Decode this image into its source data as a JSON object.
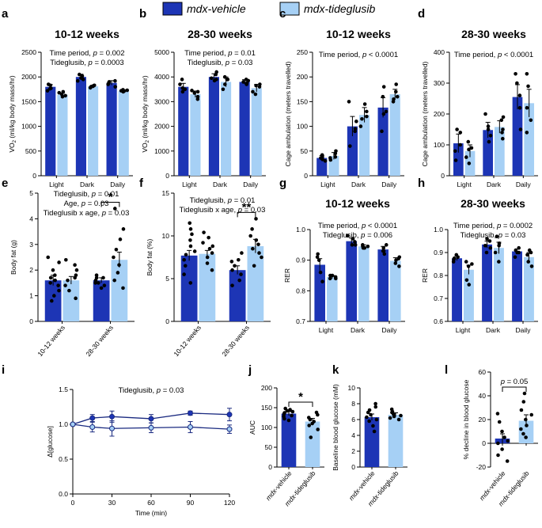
{
  "legend": {
    "items": [
      {
        "name": "mdx-vehicle",
        "color": "#1d35b5"
      },
      {
        "name": "mdx-tideglusib",
        "color": "#a6d0f5"
      }
    ]
  },
  "colors": {
    "vehicle": "#1d35b5",
    "tideglusib": "#a6d0f5",
    "axis": "#000000"
  },
  "chart_data": [
    {
      "letter": "a",
      "type": "bar",
      "title": "10-12 weeks",
      "stats": [
        "Time period, p = 0.002",
        "Tideglusib, p = 0.0003"
      ],
      "ylabel": "VO2 (ml/kg body mass/hr)",
      "ylim": [
        0,
        2500
      ],
      "yticks": [
        0,
        500,
        1000,
        1500,
        2000,
        2500
      ],
      "categories": [
        "Light",
        "Dark",
        "Daily"
      ],
      "rotate": false,
      "series": [
        {
          "name": "mdx-vehicle",
          "values": [
            1800,
            2000,
            1880
          ],
          "err": [
            45,
            55,
            45
          ],
          "points": [
            [
              1830,
              1770,
              1720,
              1850,
              1760
            ],
            [
              2050,
              1950,
              2020,
              1920,
              1980
            ],
            [
              1900,
              1850,
              1920,
              1800,
              1870
            ]
          ]
        },
        {
          "name": "mdx-tideglusib",
          "values": [
            1640,
            1810,
            1720
          ],
          "err": [
            30,
            25,
            20
          ],
          "points": [
            [
              1600,
              1680,
              1620,
              1700,
              1650
            ],
            [
              1800,
              1830,
              1780,
              1820,
              1810
            ],
            [
              1700,
              1730,
              1720,
              1740,
              1710
            ]
          ]
        }
      ]
    },
    {
      "letter": "b",
      "type": "bar",
      "title": "28-30 weeks",
      "stats": [
        "Time period, p = 0.01",
        "Tideglusib, p = 0.03"
      ],
      "ylabel": "VO2 (ml/kg body mass/hr)",
      "ylim": [
        0,
        5000
      ],
      "yticks": [
        0,
        1000,
        2000,
        3000,
        4000,
        5000
      ],
      "categories": [
        "Light",
        "Dark",
        "Daily"
      ],
      "rotate": false,
      "series": [
        {
          "name": "mdx-vehicle",
          "values": [
            3600,
            4000,
            3800
          ],
          "err": [
            140,
            130,
            90
          ],
          "points": [
            [
              3500,
              3700,
              3900,
              3400,
              3550
            ],
            [
              4100,
              3900,
              4200,
              3850,
              3950
            ],
            [
              3700,
              3850,
              3900,
              3750,
              3800
            ]
          ]
        },
        {
          "name": "mdx-tideglusib",
          "values": [
            3300,
            3800,
            3550
          ],
          "err": [
            130,
            200,
            150
          ],
          "points": [
            [
              3100,
              3350,
              3400,
              3200,
              3450
            ],
            [
              3500,
              3900,
              4000,
              3700,
              3900
            ],
            [
              3300,
              3600,
              3700,
              3400,
              3650
            ]
          ]
        }
      ]
    },
    {
      "letter": "c",
      "type": "bar",
      "title": "10-12 weeks",
      "stats": [
        "Time period, p < 0.0001"
      ],
      "ylabel": "Cage ambulation (meters travelled)",
      "ylim": [
        0,
        250
      ],
      "yticks": [
        0,
        50,
        100,
        150,
        200,
        250
      ],
      "categories": [
        "Light",
        "Dark",
        "Daily"
      ],
      "rotate": false,
      "series": [
        {
          "name": "mdx-vehicle",
          "values": [
            36,
            100,
            138
          ],
          "err": [
            5,
            20,
            20
          ],
          "points": [
            [
              30,
              38,
              42,
              33,
              36
            ],
            [
              60,
              90,
              110,
              150,
              95
            ],
            [
              90,
              130,
              160,
              180,
              125
            ]
          ]
        },
        {
          "name": "mdx-tideglusib",
          "values": [
            40,
            123,
            165
          ],
          "err": [
            7,
            15,
            10
          ],
          "points": [
            [
              32,
              45,
              50,
              36,
              38
            ],
            [
              100,
              130,
              145,
              115,
              120
            ],
            [
              150,
              160,
              185,
              170,
              155
            ]
          ]
        }
      ]
    },
    {
      "letter": "d",
      "type": "bar",
      "title": "28-30 weeks",
      "stats": [
        "Time period, p < 0.0001"
      ],
      "ylabel": "Cage ambulation (meters travelled)",
      "ylim": [
        0,
        400
      ],
      "yticks": [
        0,
        100,
        200,
        300,
        400
      ],
      "categories": [
        "Light",
        "Dark",
        "Daily"
      ],
      "rotate": false,
      "series": [
        {
          "name": "mdx-vehicle",
          "values": [
            105,
            148,
            255
          ],
          "err": [
            30,
            25,
            40
          ],
          "points": [
            [
              50,
              80,
              140,
              100,
              150
            ],
            [
              110,
              130,
              200,
              150,
              160
            ],
            [
              150,
              220,
              330,
              300,
              260
            ]
          ]
        },
        {
          "name": "mdx-tideglusib",
          "values": [
            80,
            158,
            235
          ],
          "err": [
            20,
            20,
            45
          ],
          "points": [
            [
              40,
              60,
              90,
              110,
              85
            ],
            [
              120,
              140,
              180,
              190,
              150
            ],
            [
              140,
              180,
              290,
              330,
              220
            ]
          ]
        }
      ]
    },
    {
      "letter": "e",
      "type": "bar",
      "title": "",
      "stats": [
        "Tideglusib, p = 0.01",
        "Age, p = 0.03",
        "Tideglusib x age, p = 0.03"
      ],
      "ylabel": "Body fat (g)",
      "ylim": [
        0,
        5
      ],
      "yticks": [
        0,
        1,
        2,
        3,
        4,
        5
      ],
      "categories": [
        "10-12 weeks",
        "28-30 weeks"
      ],
      "rotate": true,
      "sig": {
        "group": 1,
        "label": "*"
      },
      "series": [
        {
          "name": "mdx-vehicle",
          "values": [
            1.6,
            1.6
          ],
          "err": [
            0.2,
            0.1
          ],
          "points": [
            [
              0.8,
              1.0,
              1.2,
              1.4,
              1.5,
              1.6,
              1.7,
              1.8,
              2.0,
              2.3,
              2.5
            ],
            [
              1.3,
              1.4,
              1.5,
              1.5,
              1.6,
              1.7,
              1.7,
              1.8
            ]
          ]
        },
        {
          "name": "mdx-tideglusib",
          "values": [
            1.6,
            2.4
          ],
          "err": [
            0.15,
            0.3
          ],
          "points": [
            [
              0.9,
              1.2,
              1.4,
              1.6,
              1.7,
              1.8,
              2.0,
              2.2,
              2.4
            ],
            [
              1.3,
              1.6,
              1.9,
              2.2,
              2.5,
              2.8,
              3.2,
              3.6,
              4.4
            ]
          ]
        }
      ]
    },
    {
      "letter": "f",
      "type": "bar",
      "title": "",
      "stats": [
        "Tideglusib, p = 0.01",
        "Tideglusib x age, p = 0.03"
      ],
      "ylabel": "Body fat (%)",
      "ylim": [
        0,
        15
      ],
      "yticks": [
        0,
        5,
        10,
        15
      ],
      "categories": [
        "10-12 weeks",
        "28-30 weeks"
      ],
      "rotate": true,
      "sig": {
        "group": 1,
        "label": "**"
      },
      "series": [
        {
          "name": "mdx-vehicle",
          "values": [
            7.7,
            6.0
          ],
          "err": [
            0.6,
            0.5
          ],
          "points": [
            [
              4.5,
              5.5,
              6.5,
              7.2,
              7.8,
              8.2,
              8.8,
              9.5,
              10.2,
              10.8,
              11.5
            ],
            [
              4.2,
              4.8,
              5.5,
              6.0,
              6.5,
              7.0,
              7.2,
              8.0
            ]
          ]
        },
        {
          "name": "mdx-tideglusib",
          "values": [
            7.9,
            8.8
          ],
          "err": [
            0.4,
            0.8
          ],
          "points": [
            [
              6.0,
              6.8,
              7.5,
              8.0,
              8.5,
              8.8,
              9.2,
              9.8,
              10.4
            ],
            [
              6.5,
              7.5,
              8.0,
              8.5,
              9.0,
              9.5,
              10.0,
              10.8,
              12.0
            ]
          ]
        }
      ]
    },
    {
      "letter": "g",
      "type": "bar",
      "title": "10-12 weeks",
      "stats": [
        "Time period, p < 0.0001",
        "Tideglusib, p = 0.006"
      ],
      "ylabel": "RER",
      "ylim": [
        0.7,
        1.0
      ],
      "yticks": [
        0.7,
        0.8,
        0.9,
        1.0
      ],
      "categories": [
        "Light",
        "Dark",
        "Daily"
      ],
      "rotate": false,
      "series": [
        {
          "name": "mdx-vehicle",
          "values": [
            0.885,
            0.962,
            0.935
          ],
          "err": [
            0.02,
            0.01,
            0.01
          ],
          "points": [
            [
              0.83,
              0.86,
              0.9,
              0.92,
              0.91
            ],
            [
              0.95,
              0.96,
              0.97,
              0.98,
              0.95
            ],
            [
              0.92,
              0.93,
              0.94,
              0.95,
              0.93
            ]
          ]
        },
        {
          "name": "mdx-tideglusib",
          "values": [
            0.845,
            0.945,
            0.898
          ],
          "err": [
            0.005,
            0.005,
            0.01
          ],
          "points": [
            [
              0.84,
              0.845,
              0.85,
              0.84,
              0.85
            ],
            [
              0.94,
              0.945,
              0.95,
              0.94,
              0.945
            ],
            [
              0.88,
              0.89,
              0.9,
              0.91,
              0.905
            ]
          ]
        }
      ]
    },
    {
      "letter": "h",
      "type": "bar",
      "title": "28-30 weeks",
      "stats": [
        "Time period, p = 0.0002",
        "Tideglusib, p = 0.03"
      ],
      "ylabel": "RER",
      "ylim": [
        0.6,
        1.0
      ],
      "yticks": [
        0.6,
        0.7,
        0.8,
        0.9,
        1.0
      ],
      "categories": [
        "Light",
        "Dark",
        "Daily"
      ],
      "rotate": false,
      "series": [
        {
          "name": "mdx-vehicle",
          "values": [
            0.875,
            0.935,
            0.905
          ],
          "err": [
            0.01,
            0.015,
            0.01
          ],
          "points": [
            [
              0.86,
              0.87,
              0.88,
              0.89,
              0.875
            ],
            [
              0.9,
              0.92,
              0.95,
              0.96,
              0.93
            ],
            [
              0.88,
              0.9,
              0.91,
              0.92,
              0.9
            ]
          ]
        },
        {
          "name": "mdx-tideglusib",
          "values": [
            0.825,
            0.92,
            0.88
          ],
          "err": [
            0.02,
            0.025,
            0.02
          ],
          "points": [
            [
              0.76,
              0.78,
              0.84,
              0.86,
              0.85
            ],
            [
              0.86,
              0.9,
              0.94,
              0.97,
              0.93
            ],
            [
              0.84,
              0.86,
              0.89,
              0.91,
              0.9
            ]
          ]
        }
      ]
    },
    {
      "letter": "i",
      "type": "line",
      "title": "",
      "stats": [
        "Tideglusib, p = 0.03"
      ],
      "xlabel": "Time (min)",
      "ylabel": "Δ[glucose]",
      "xlim": [
        0,
        120
      ],
      "xticks": [
        0,
        30,
        60,
        90,
        120
      ],
      "ylim": [
        0,
        1.5
      ],
      "yticks": [
        0.0,
        0.5,
        1.0,
        1.5
      ],
      "x": [
        0,
        15,
        30,
        60,
        90,
        120
      ],
      "series": [
        {
          "name": "mdx-vehicle",
          "values": [
            1.0,
            1.09,
            1.11,
            1.08,
            1.16,
            1.14
          ],
          "err": [
            0,
            0.05,
            0.08,
            0.06,
            0.03,
            0.09
          ]
        },
        {
          "name": "mdx-tideglusib",
          "values": [
            1.0,
            0.96,
            0.94,
            0.95,
            0.96,
            0.93
          ],
          "err": [
            0,
            0.07,
            0.11,
            0.07,
            0.08,
            0.06
          ]
        }
      ]
    },
    {
      "letter": "j",
      "type": "bar",
      "title": "",
      "stats": [],
      "ylabel": "AUC",
      "ylim": [
        0,
        200
      ],
      "yticks": [
        0,
        50,
        100,
        150,
        200
      ],
      "categories": [
        "mdx-vehicle",
        "mdx-tideglusib"
      ],
      "rotate": true,
      "single": true,
      "sig": {
        "label": "*"
      },
      "values": [
        135,
        115
      ],
      "err": [
        5,
        8
      ],
      "points": [
        [
          118,
          122,
          128,
          130,
          134,
          137,
          140,
          142,
          145,
          148
        ],
        [
          75,
          95,
          105,
          110,
          115,
          120,
          125,
          132,
          138
        ]
      ]
    },
    {
      "letter": "k",
      "type": "bar",
      "title": "",
      "stats": [],
      "ylabel": "Baseline blood glucose (mM)",
      "ylim": [
        0,
        10
      ],
      "yticks": [
        0,
        2,
        4,
        6,
        8,
        10
      ],
      "categories": [
        "mdx-vehicle",
        "mdx-tideglusib"
      ],
      "rotate": true,
      "single": true,
      "values": [
        6.3,
        6.6
      ],
      "err": [
        0.4,
        0.25
      ],
      "points": [
        [
          4.5,
          5.2,
          5.8,
          6.0,
          6.3,
          6.6,
          6.9,
          7.2,
          7.6,
          8.0
        ],
        [
          6.0,
          6.2,
          6.4,
          6.5,
          6.7,
          6.9,
          7.0,
          7.3
        ]
      ]
    },
    {
      "letter": "l",
      "type": "bar",
      "title": "",
      "stats": [],
      "ylabel": "% decline in blood glucose",
      "ylim": [
        -20,
        60
      ],
      "yticks": [
        -20,
        0,
        20,
        40,
        60
      ],
      "categories": [
        "mdx-vehicle",
        "mdx-tideglusib"
      ],
      "rotate": true,
      "single": true,
      "sig": {
        "label": "p = 0.05"
      },
      "values": [
        4,
        19
      ],
      "err": [
        4,
        5
      ],
      "points": [
        [
          -15,
          -10,
          -5,
          0,
          2,
          5,
          10,
          18,
          25
        ],
        [
          5,
          8,
          12,
          15,
          20,
          24,
          28,
          35,
          42
        ]
      ]
    }
  ]
}
